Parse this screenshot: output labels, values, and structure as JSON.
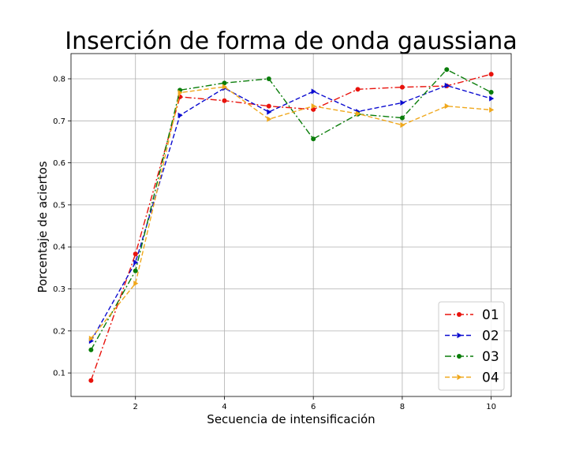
{
  "chart_data": {
    "type": "line",
    "title": "Inserción de forma de onda gaussiana",
    "xlabel": "Secuencia de intensificación",
    "ylabel": "Porcentaje de aciertos",
    "xlim": [
      0.55,
      10.45
    ],
    "ylim": [
      0.044,
      0.86
    ],
    "x_ticks": [
      2,
      4,
      6,
      8,
      10
    ],
    "y_ticks": [
      0.1,
      0.2,
      0.3,
      0.4,
      0.5,
      0.6,
      0.7,
      0.8
    ],
    "grid": true,
    "legend_position": "lower-right",
    "x": [
      1,
      2,
      3,
      4,
      5,
      6,
      7,
      8,
      9,
      10
    ],
    "series": [
      {
        "name": "01",
        "color": "#e8120c",
        "linestyle": "dashdot",
        "marker": "circle",
        "values": [
          0.082,
          0.383,
          0.757,
          0.748,
          0.735,
          0.727,
          0.775,
          0.78,
          0.783,
          0.811
        ]
      },
      {
        "name": "02",
        "color": "#0b0bd0",
        "linestyle": "dashed",
        "marker": "triangle-right",
        "values": [
          0.176,
          0.363,
          0.713,
          0.778,
          0.721,
          0.77,
          0.722,
          0.743,
          0.784,
          0.753
        ]
      },
      {
        "name": "03",
        "color": "#0a7d0a",
        "linestyle": "dashdot",
        "marker": "circle",
        "values": [
          0.155,
          0.343,
          0.773,
          0.79,
          0.8,
          0.657,
          0.716,
          0.707,
          0.822,
          0.768
        ]
      },
      {
        "name": "04",
        "color": "#f0a81c",
        "linestyle": "dashed",
        "marker": "triangle-right",
        "values": [
          0.182,
          0.313,
          0.767,
          0.781,
          0.704,
          0.735,
          0.717,
          0.69,
          0.735,
          0.726
        ]
      }
    ]
  }
}
